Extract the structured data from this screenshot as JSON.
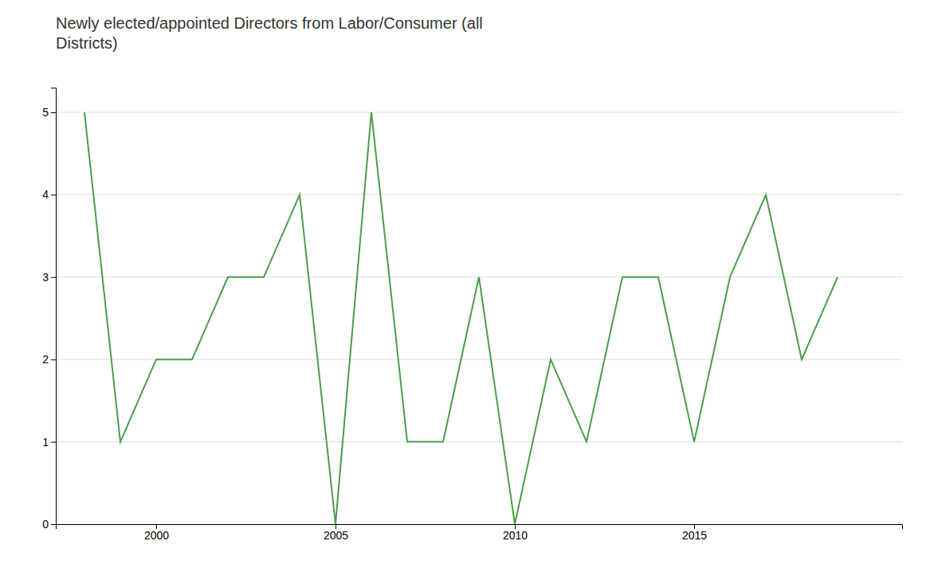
{
  "chart_data": {
    "type": "line",
    "title": "Newly elected/appointed Directors from Labor/Consumer (all\nDistricts)",
    "x": [
      1998,
      1999,
      2000,
      2001,
      2002,
      2003,
      2004,
      2005,
      2006,
      2007,
      2008,
      2009,
      2010,
      2011,
      2012,
      2013,
      2014,
      2015,
      2016,
      2017,
      2018,
      2019
    ],
    "values": [
      5,
      1,
      2,
      2,
      3,
      3,
      4,
      0,
      5,
      1,
      1,
      3,
      0,
      2,
      1,
      3,
      3,
      1,
      3,
      4,
      2,
      3
    ],
    "color": "#4a9e4a",
    "xlim": [
      1997.2,
      2020.8
    ],
    "xticks": [
      2000,
      2005,
      2010,
      2015
    ],
    "ylim": [
      0,
      5.3
    ],
    "yticks": [
      0,
      1,
      2,
      3,
      4,
      5
    ],
    "grid": "y"
  }
}
